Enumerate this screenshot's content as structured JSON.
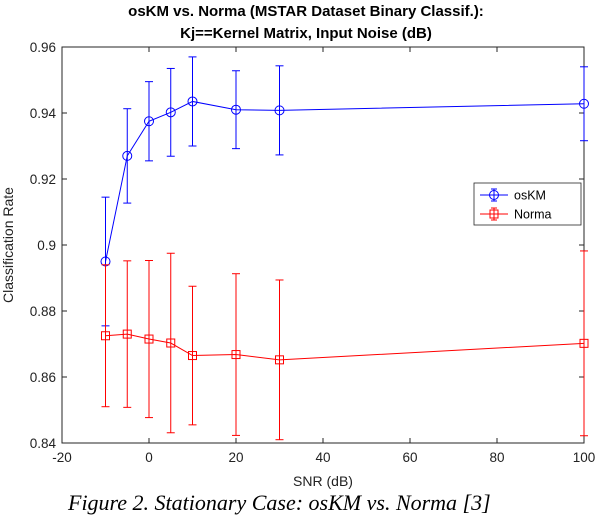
{
  "chart_data": {
    "type": "line",
    "title_lines": [
      "osKM vs. Norma (MSTAR Dataset Binary Classif.):",
      "Kj==Kernel Matrix, Input Noise (dB)"
    ],
    "xlabel": "SNR (dB)",
    "ylabel": "Classification Rate",
    "xlim": [
      -20,
      100
    ],
    "ylim": [
      0.84,
      0.96
    ],
    "xticks": [
      -20,
      0,
      20,
      40,
      60,
      80,
      100
    ],
    "yticks": [
      0.84,
      0.86,
      0.88,
      0.9,
      0.92,
      0.94,
      0.96
    ],
    "ytick_labels": [
      "0.84",
      "0.86",
      "0.88",
      "0.9",
      "0.92",
      "0.94",
      "0.96"
    ],
    "legend_position": "right-middle",
    "grid": false,
    "series": [
      {
        "name": "osKM",
        "color": "#0000ff",
        "marker": "circle",
        "x": [
          -10,
          -5,
          0,
          5,
          10,
          20,
          30,
          100
        ],
        "y": [
          0.895,
          0.927,
          0.9375,
          0.9402,
          0.9435,
          0.941,
          0.9408,
          0.9428
        ],
        "err": [
          0.0195,
          0.0143,
          0.012,
          0.0133,
          0.0135,
          0.0118,
          0.0135,
          0.0112
        ]
      },
      {
        "name": "Norma",
        "color": "#ff0000",
        "marker": "square",
        "x": [
          -10,
          -5,
          0,
          5,
          10,
          20,
          30,
          100
        ],
        "y": [
          0.8725,
          0.873,
          0.8715,
          0.8703,
          0.8665,
          0.8668,
          0.8652,
          0.8702
        ],
        "err": [
          0.0215,
          0.0222,
          0.0238,
          0.0272,
          0.021,
          0.0245,
          0.0242,
          0.028
        ]
      }
    ]
  },
  "caption": "Figure 2. Stationary Case: osKM vs. Norma [3]"
}
